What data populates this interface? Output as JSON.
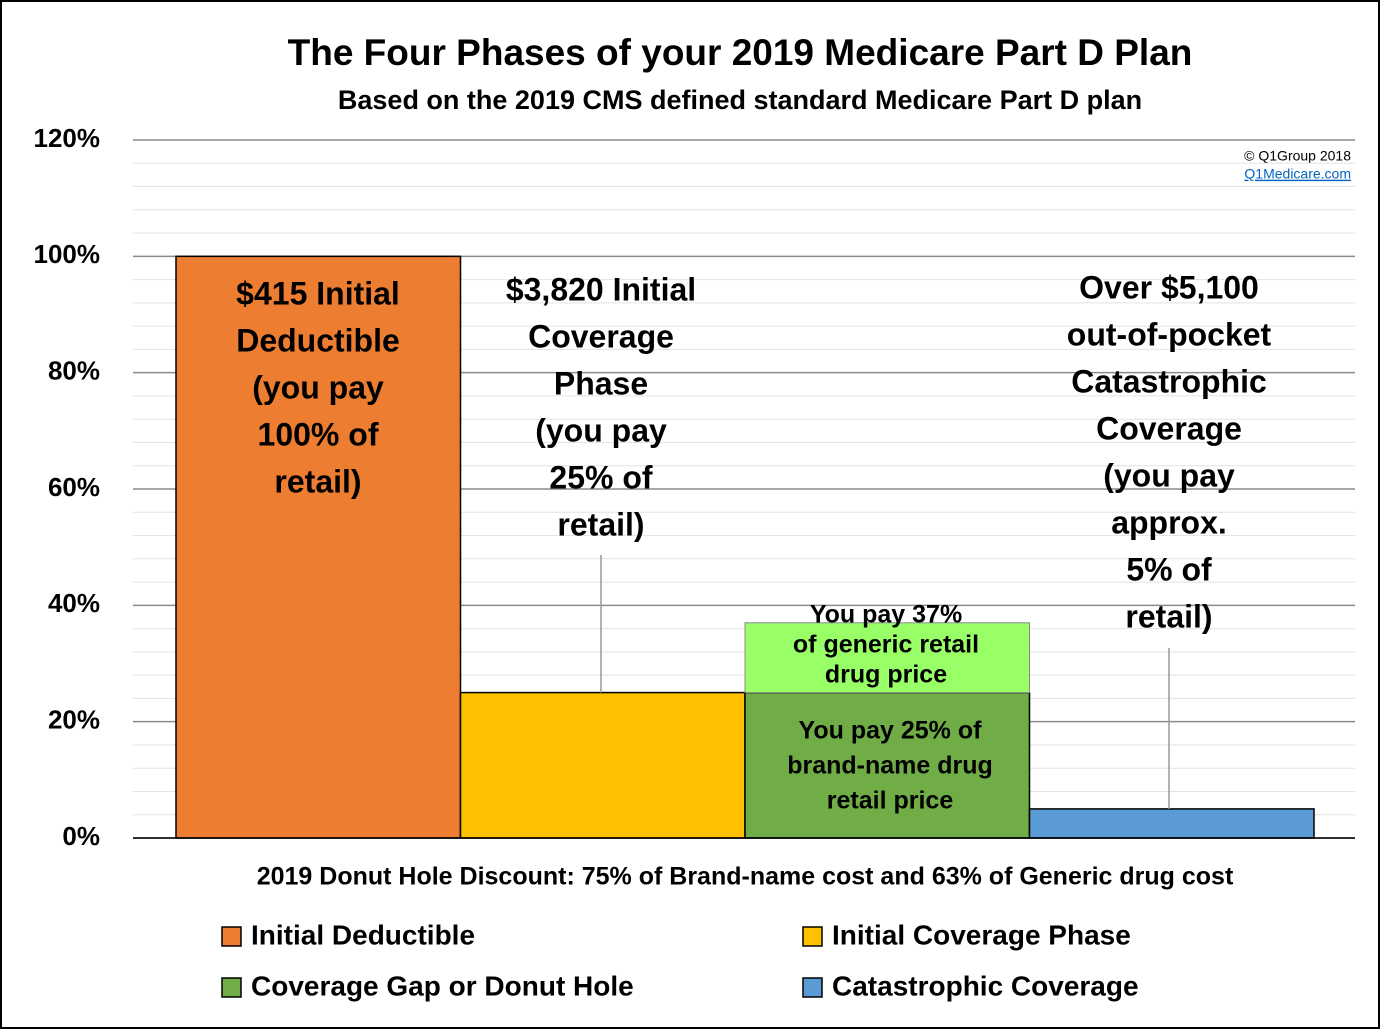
{
  "chart_data": {
    "type": "bar",
    "title": "The Four Phases of your 2019 Medicare Part D Plan",
    "subtitle": "Based on the 2019 CMS defined standard Medicare Part D plan",
    "copyright": "© Q1Group 2018",
    "source_link": "Q1Medicare.com",
    "footnote": "2019 Donut Hole Discount: 75% of Brand-name cost and 63% of Generic drug cost",
    "ylim": [
      0,
      120
    ],
    "yticks": [
      {
        "value": 0,
        "label": "0%"
      },
      {
        "value": 20,
        "label": "20%"
      },
      {
        "value": 40,
        "label": "40%"
      },
      {
        "value": 60,
        "label": "60%"
      },
      {
        "value": 80,
        "label": "80%"
      },
      {
        "value": 100,
        "label": "100%"
      },
      {
        "value": 120,
        "label": "120%"
      }
    ],
    "grid": true,
    "legend": "bottom",
    "bars": [
      {
        "name": "Initial Deductible",
        "color": "#ed7d31",
        "value": 100,
        "label": [
          "$415 Initial",
          "Deductible",
          "(you pay",
          "100% of",
          "retail)"
        ]
      },
      {
        "name": "Initial Coverage Phase",
        "color": "#ffc000",
        "value": 25,
        "label": [
          "$3,820 Initial",
          "Coverage",
          "Phase",
          "(you pay",
          "25% of",
          "retail)"
        ]
      },
      {
        "name": "Coverage Gap or Donut Hole",
        "color": "#70ad47",
        "value": 25,
        "label": [
          "You pay 25% of",
          "brand-name drug",
          "retail price"
        ],
        "stack": {
          "color": "#99ff66",
          "value": 12,
          "label": [
            "You pay 37%",
            "of generic retail",
            "drug price"
          ]
        }
      },
      {
        "name": "Catastrophic Coverage",
        "color": "#5b9bd5",
        "value": 5,
        "label": [
          "Over $5,100",
          "out-of-pocket",
          "Catastrophic",
          "Coverage",
          "(you pay",
          "approx.",
          "5% of",
          "retail)"
        ]
      }
    ]
  }
}
